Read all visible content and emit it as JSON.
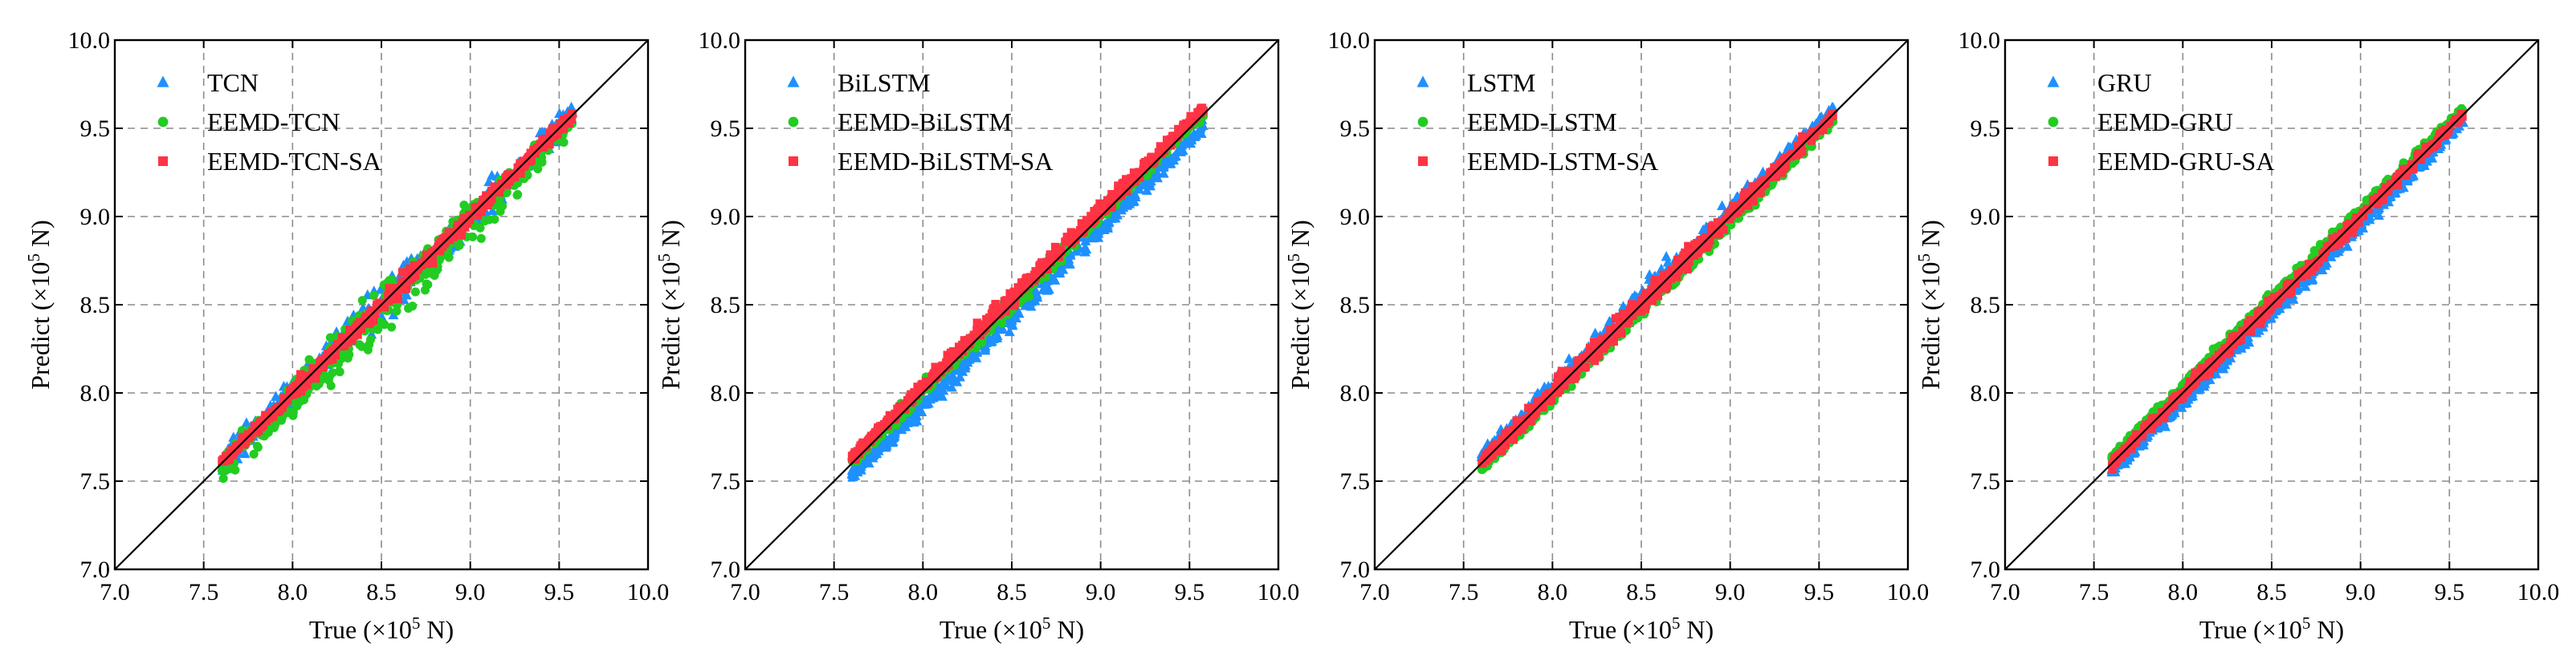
{
  "colors": {
    "blue": "#1e90ff",
    "green": "#22cc22",
    "red": "#ff3344",
    "grid": "#8c8c8c"
  },
  "chart_data": [
    {
      "type": "scatter",
      "title": "",
      "xlabel": {
        "prefix": "True (×10",
        "exp": "5",
        "suffix": " N)"
      },
      "ylabel": {
        "prefix": "Predict (×10",
        "exp": "5",
        "suffix": " N)"
      },
      "xlim": [
        7.0,
        10.0
      ],
      "ylim": [
        7.0,
        10.0
      ],
      "ticks": [
        "7.0",
        "7.5",
        "8.0",
        "8.5",
        "9.0",
        "9.5",
        "10.0"
      ],
      "grid": true,
      "legend": "top-left",
      "reference_line": "y = x",
      "x_range": [
        7.6,
        9.58
      ],
      "series": [
        {
          "name": "TCN",
          "marker": "triangle",
          "color": "blue",
          "bias": 0.0,
          "spread": 0.09,
          "offset": 0.0
        },
        {
          "name": "EEMD-TCN",
          "marker": "circle",
          "color": "green",
          "bias": -0.03,
          "spread": 0.12,
          "offset": -0.02
        },
        {
          "name": "EEMD-TCN-SA",
          "marker": "square",
          "color": "red",
          "bias": 0.0,
          "spread": 0.04,
          "offset": 0.0
        }
      ]
    },
    {
      "type": "scatter",
      "title": "",
      "xlabel": {
        "prefix": "True (×10",
        "exp": "5",
        "suffix": " N)"
      },
      "ylabel": {
        "prefix": "Predict (×10",
        "exp": "5",
        "suffix": " N)"
      },
      "xlim": [
        7.0,
        10.0
      ],
      "ylim": [
        7.0,
        10.0
      ],
      "ticks": [
        "7.0",
        "7.5",
        "8.0",
        "8.5",
        "9.0",
        "9.5",
        "10.0"
      ],
      "grid": true,
      "legend": "top-left",
      "reference_line": "y = x",
      "x_range": [
        7.6,
        9.58
      ],
      "series": [
        {
          "name": "BiLSTM",
          "marker": "triangle",
          "color": "blue",
          "bias": -0.06,
          "spread": 0.05,
          "offset": -0.04
        },
        {
          "name": "EEMD-BiLSTM",
          "marker": "circle",
          "color": "green",
          "bias": 0.02,
          "spread": 0.04,
          "offset": 0.0
        },
        {
          "name": "EEMD-BiLSTM-SA",
          "marker": "square",
          "color": "red",
          "bias": 0.03,
          "spread": 0.04,
          "offset": 0.02
        }
      ]
    },
    {
      "type": "scatter",
      "title": "",
      "xlabel": {
        "prefix": "True (×10",
        "exp": "5",
        "suffix": " N)"
      },
      "ylabel": {
        "prefix": "Predict (×10",
        "exp": "5",
        "suffix": " N)"
      },
      "xlim": [
        7.0,
        10.0
      ],
      "ylim": [
        7.0,
        10.0
      ],
      "ticks": [
        "7.0",
        "7.5",
        "8.0",
        "8.5",
        "9.0",
        "9.5",
        "10.0"
      ],
      "grid": true,
      "legend": "top-left",
      "reference_line": "y = x",
      "x_range": [
        7.6,
        9.58
      ],
      "series": [
        {
          "name": "LSTM",
          "marker": "triangle",
          "color": "blue",
          "bias": 0.03,
          "spread": 0.05,
          "offset": 0.02
        },
        {
          "name": "EEMD-LSTM",
          "marker": "circle",
          "color": "green",
          "bias": -0.02,
          "spread": 0.04,
          "offset": -0.02
        },
        {
          "name": "EEMD-LSTM-SA",
          "marker": "square",
          "color": "red",
          "bias": 0.0,
          "spread": 0.05,
          "offset": 0.0
        }
      ]
    },
    {
      "type": "scatter",
      "title": "",
      "xlabel": {
        "prefix": "True (×10",
        "exp": "5",
        "suffix": " N)"
      },
      "ylabel": {
        "prefix": "Predict (×10",
        "exp": "5",
        "suffix": " N)"
      },
      "xlim": [
        7.0,
        10.0
      ],
      "ylim": [
        7.0,
        10.0
      ],
      "ticks": [
        "7.0",
        "7.5",
        "8.0",
        "8.5",
        "9.0",
        "9.5",
        "10.0"
      ],
      "grid": true,
      "legend": "top-left",
      "reference_line": "y = x",
      "x_range": [
        7.6,
        9.58
      ],
      "series": [
        {
          "name": "GRU",
          "marker": "triangle",
          "color": "blue",
          "bias": -0.04,
          "spread": 0.04,
          "offset": -0.03
        },
        {
          "name": "EEMD-GRU",
          "marker": "circle",
          "color": "green",
          "bias": 0.03,
          "spread": 0.03,
          "offset": 0.02
        },
        {
          "name": "EEMD-GRU-SA",
          "marker": "square",
          "color": "red",
          "bias": 0.0,
          "spread": 0.035,
          "offset": 0.0
        }
      ]
    }
  ]
}
